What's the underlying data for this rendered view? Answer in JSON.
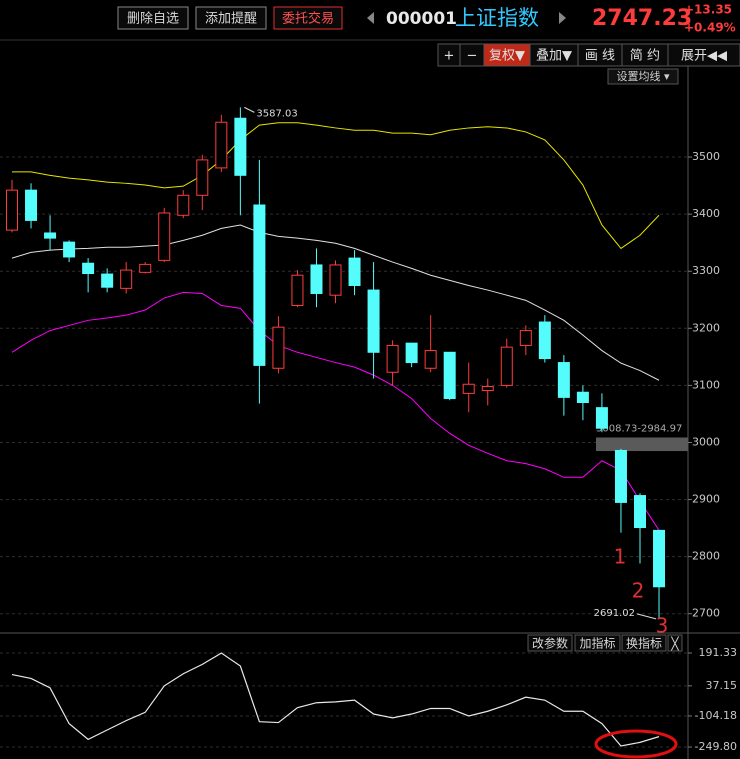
{
  "toolbar": {
    "buttons": [
      "删除自选",
      "添加提醒",
      "委托交易"
    ],
    "code": "000001",
    "name": "上证指数",
    "price": "2747.23",
    "change": "+13.35",
    "change_pct": "+0.49%"
  },
  "chart_toolbar": {
    "buttons": [
      "+",
      "−",
      "复权▼",
      "叠加▼",
      "画 线",
      "简 约",
      "展开◀◀"
    ],
    "ma_setting": "设置均线 ▾"
  },
  "indicator_toolbar": {
    "buttons": [
      "改参数",
      "加指标",
      "换指标",
      "╳"
    ]
  },
  "chart_data": [
    {
      "type": "candlestick",
      "open": [
        3372,
        3442,
        3367,
        3351,
        3314,
        3295,
        3270,
        3298,
        3319,
        3398,
        3433,
        3481,
        3568,
        3416,
        3130,
        3240,
        3311,
        3258,
        3323,
        3267,
        3123,
        3174,
        3130,
        3158,
        3086,
        3091,
        3100,
        3170,
        3211,
        3140,
        3088,
        3061,
        2986,
        2907,
        2846
      ],
      "high": [
        3460,
        3454,
        3398,
        3354,
        3323,
        3305,
        3316,
        3316,
        3411,
        3442,
        3504,
        3574,
        3587.03,
        3495,
        3221,
        3302,
        3340,
        3319,
        3337,
        3316,
        3179,
        3174,
        3223,
        3158,
        3140,
        3112,
        3182,
        3205,
        3223,
        3153,
        3100,
        3086,
        2989,
        2911,
        2846
      ],
      "low": [
        3368,
        3375,
        3337,
        3316,
        3263,
        3263,
        3261,
        3296,
        3316,
        3393,
        3407,
        3474,
        3398,
        3068,
        3121,
        3237,
        3237,
        3244,
        3258,
        3112,
        3100,
        3132,
        3123,
        3074,
        3053,
        3065,
        3096,
        3153,
        3140,
        3047,
        3039,
        3018,
        2842,
        2788,
        2691.02
      ],
      "close": [
        3442,
        3389,
        3358,
        3325,
        3296,
        3272,
        3302,
        3312,
        3402,
        3433,
        3495,
        3561,
        3468,
        3135,
        3202,
        3293,
        3261,
        3311,
        3275,
        3158,
        3170,
        3140,
        3161,
        3077,
        3102,
        3098,
        3167,
        3196,
        3147,
        3079,
        3070,
        3025,
        2895,
        2851,
        2747.23
      ],
      "up_color": "#ff3c3c",
      "down_color": "#54fcfc",
      "series": [
        {
          "color": "#e6e600",
          "values": [
            3474,
            3474,
            3468,
            3463,
            3460,
            3456,
            3454,
            3451,
            3446,
            3449,
            3468,
            3495,
            3530,
            3556,
            3560,
            3560,
            3556,
            3551,
            3547,
            3547,
            3542,
            3542,
            3539,
            3547,
            3551,
            3553,
            3551,
            3544,
            3530,
            3495,
            3451,
            3381,
            3340,
            3363,
            3398
          ]
        },
        {
          "color": "#e0e0e0",
          "values": [
            3323,
            3333,
            3337,
            3339,
            3340,
            3342,
            3342,
            3344,
            3346,
            3354,
            3363,
            3375,
            3381,
            3368,
            3361,
            3358,
            3354,
            3349,
            3340,
            3328,
            3316,
            3305,
            3293,
            3284,
            3275,
            3267,
            3258,
            3249,
            3232,
            3214,
            3188,
            3161,
            3139,
            3126,
            3109
          ]
        },
        {
          "color": "#ff00ff",
          "values": [
            3158,
            3179,
            3196,
            3205,
            3214,
            3218,
            3223,
            3232,
            3253,
            3263,
            3261,
            3240,
            3235,
            3196,
            3170,
            3158,
            3149,
            3140,
            3132,
            3118,
            3100,
            3077,
            3042,
            3016,
            2995,
            2981,
            2968,
            2963,
            2954,
            2939,
            2939,
            2968,
            2951,
            2898,
            2846
          ]
        }
      ],
      "ylim": [
        2668,
        3656
      ],
      "yticks": [
        2700,
        2800,
        2900,
        3000,
        3100,
        3200,
        3300,
        3400,
        3500
      ],
      "grid": true,
      "band": {
        "label": "3008.73-2984.97",
        "from": 2984.97,
        "to": 3008.73
      },
      "markers": [
        "1",
        "2",
        "3"
      ]
    },
    {
      "type": "line",
      "series": [
        {
          "color": "#e8e8e8",
          "values": [
            90,
            72,
            28,
            -140,
            -214,
            -170,
            -126,
            -87,
            37,
            94,
            138,
            191,
            130,
            -131,
            -135,
            -65,
            -42,
            -38,
            -30,
            -95,
            -113,
            -95,
            -69,
            -69,
            -104,
            -82,
            -52,
            -16,
            -30,
            -82,
            -82,
            -140,
            -245,
            -228,
            -201
          ]
        }
      ],
      "ylim": [
        -306,
        271
      ],
      "yticks": [
        {
          "value": -249.8,
          "label": "-249.80"
        },
        -104.18,
        37.15,
        191.33
      ],
      "grid": true
    }
  ]
}
